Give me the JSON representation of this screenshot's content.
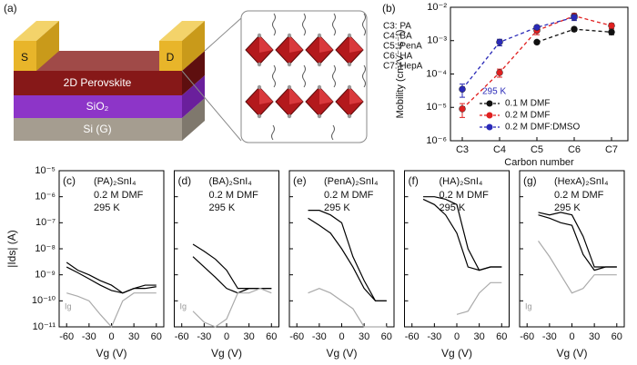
{
  "schematic": {
    "label": "(a)",
    "source": "S",
    "drain": "D",
    "layers": [
      "2D Perovskite",
      "SiO₂",
      "Si (G)"
    ]
  },
  "chart_data": [
    {
      "type": "line",
      "panel": "(b)",
      "xlabel": "Carbon number",
      "ylabel": "Mobility (cm²V⁻¹s⁻¹)",
      "log_y": true,
      "categories": [
        "C3",
        "C4",
        "C5",
        "C6",
        "C7"
      ],
      "ylim": [
        1e-06,
        0.01
      ],
      "yticks": [
        {
          "value": 1e-06,
          "label": "10⁻⁶"
        },
        {
          "value": 1e-05,
          "label": "10⁻⁵"
        },
        {
          "value": 0.0001,
          "label": "10⁻⁴"
        },
        {
          "value": 0.001,
          "label": "10⁻³"
        },
        {
          "value": 0.01,
          "label": "10⁻²"
        }
      ],
      "annotations": [
        "C3: PA",
        "C4: BA",
        "C5: PenA",
        "C6: HA",
        "C7: HepA"
      ],
      "legend_title": "295 K",
      "line_style": "dashed",
      "series": [
        {
          "name": "0.1 M DMF",
          "color": "#111111",
          "values": [
            null,
            null,
            0.0009,
            0.0022,
            0.0018
          ],
          "errors": [
            null,
            null,
            0.0001,
            0.0003,
            0.0003
          ]
        },
        {
          "name": "0.2 M DMF",
          "color": "#e02020",
          "values": [
            9e-06,
            0.00011,
            0.002,
            0.0055,
            0.0028
          ],
          "errors": [
            4e-06,
            3e-05,
            0.0005,
            0.001,
            0.0005
          ]
        },
        {
          "name": "0.2 M DMF:DMSO",
          "color": "#2a2ab8",
          "values": [
            3.5e-05,
            0.0009,
            0.0025,
            0.005,
            null
          ],
          "errors": [
            1.5e-05,
            0.0002,
            0.0003,
            0.001,
            null
          ]
        }
      ]
    },
    {
      "type": "line",
      "panel": "(c)",
      "title": "(PA)₂SnI₄",
      "notes": [
        "0.2 M  DMF",
        "295 K"
      ],
      "xlabel": "Vg (V)",
      "ylabel": "|Ids| (A)",
      "log_y": true,
      "gate_label": "Ig",
      "xlim": [
        -70,
        70
      ],
      "xticks": [
        -60,
        -30,
        0,
        30,
        60
      ],
      "ylim": [
        1e-11,
        1e-05
      ],
      "yticks": [
        {
          "value": 1e-11,
          "label": "10⁻¹¹"
        },
        {
          "value": 1e-10,
          "label": "10⁻¹⁰"
        },
        {
          "value": 1e-09,
          "label": "10⁻⁹"
        },
        {
          "value": 1e-08,
          "label": "10⁻⁸"
        },
        {
          "value": 1e-07,
          "label": "10⁻⁷"
        },
        {
          "value": 1e-06,
          "label": "10⁻⁶"
        },
        {
          "value": 1e-05,
          "label": "10⁻⁵"
        }
      ],
      "x": [
        -60,
        -45,
        -30,
        -15,
        0,
        15,
        30,
        45,
        60
      ],
      "series": [
        {
          "color": "#000000",
          "values": [
            3e-09,
            1.5e-09,
            1e-09,
            6e-10,
            4e-10,
            2e-10,
            3e-10,
            4e-10,
            4e-10
          ]
        },
        {
          "color": "#000000",
          "values": [
            2e-09,
            1.2e-09,
            7e-10,
            4e-10,
            2.5e-10,
            2e-10,
            3e-10,
            3e-10,
            3.5e-10
          ]
        },
        {
          "color": "#aaaaaa",
          "values": [
            2e-10,
            1.5e-10,
            1e-10,
            3e-11,
            1e-11,
            1e-10,
            2e-10,
            2e-10,
            2e-10
          ]
        }
      ]
    },
    {
      "type": "line",
      "panel": "(d)",
      "title": "(BA)₂SnI₄",
      "notes": [
        "0.2 M  DMF",
        "295 K"
      ],
      "xlabel": "Vg (V)",
      "log_y": true,
      "gate_label": "Ig",
      "xlim": [
        -70,
        70
      ],
      "xticks": [
        -60,
        -30,
        0,
        30,
        60
      ],
      "ylim": [
        1e-11,
        1e-05
      ],
      "yticks": [
        1e-11,
        1e-10,
        1e-09,
        1e-08,
        1e-07,
        1e-06,
        1e-05
      ],
      "x": [
        -60,
        -45,
        -30,
        -15,
        0,
        15,
        30,
        45,
        60
      ],
      "series": [
        {
          "color": "#000000",
          "values": [
            null,
            1.5e-08,
            8e-09,
            4e-09,
            1.5e-09,
            3e-10,
            3e-10,
            3e-10,
            3e-10
          ]
        },
        {
          "color": "#000000",
          "values": [
            null,
            5e-09,
            2e-09,
            8e-10,
            3e-10,
            2e-10,
            3e-10,
            3e-10,
            3e-10
          ]
        },
        {
          "color": "#aaaaaa",
          "values": [
            null,
            4e-11,
            1.5e-11,
            1e-11,
            2e-11,
            2e-10,
            2e-10,
            3e-10,
            2e-10
          ]
        }
      ]
    },
    {
      "type": "line",
      "panel": "(e)",
      "title": "(PenA)₂SnI₄",
      "notes": [
        "0.2 M  DMF",
        "295 K"
      ],
      "xlabel": "Vg (V)",
      "log_y": true,
      "xlim": [
        -70,
        70
      ],
      "xticks": [
        -60,
        -30,
        0,
        30,
        60
      ],
      "ylim": [
        1e-11,
        1e-05
      ],
      "yticks": [
        1e-11,
        1e-10,
        1e-09,
        1e-08,
        1e-07,
        1e-06,
        1e-05
      ],
      "x": [
        -60,
        -45,
        -30,
        -15,
        0,
        15,
        30,
        45,
        60
      ],
      "series": [
        {
          "color": "#000000",
          "values": [
            null,
            3e-07,
            3e-07,
            2e-07,
            1e-07,
            5e-09,
            6e-10,
            1e-10,
            1e-10
          ]
        },
        {
          "color": "#000000",
          "values": [
            null,
            1.5e-07,
            8e-08,
            4e-08,
            1e-08,
            2e-09,
            3e-10,
            1e-10,
            1e-10
          ]
        },
        {
          "color": "#aaaaaa",
          "values": [
            null,
            2e-10,
            3e-10,
            2e-10,
            1e-10,
            5e-11,
            1e-11,
            1e-11,
            1e-11
          ]
        }
      ]
    },
    {
      "type": "line",
      "panel": "(f)",
      "title": "(HA)₂SnI₄",
      "notes": [
        "0.2 M  DMF",
        "295 K"
      ],
      "xlabel": "Vg (V)",
      "log_y": true,
      "xlim": [
        -70,
        70
      ],
      "xticks": [
        -60,
        -30,
        0,
        30,
        60
      ],
      "ylim": [
        1e-11,
        1e-05
      ],
      "yticks": [
        1e-11,
        1e-10,
        1e-09,
        1e-08,
        1e-07,
        1e-06,
        1e-05
      ],
      "x": [
        -60,
        -45,
        -30,
        -15,
        0,
        15,
        30,
        45,
        60
      ],
      "series": [
        {
          "color": "#000000",
          "values": [
            null,
            1e-06,
            1e-06,
            8e-07,
            5e-07,
            1e-08,
            1.5e-09,
            2e-09,
            2e-09
          ]
        },
        {
          "color": "#000000",
          "values": [
            null,
            8e-07,
            5e-07,
            2e-07,
            4e-08,
            2e-09,
            1.5e-09,
            2e-09,
            2e-09
          ]
        },
        {
          "color": "#aaaaaa",
          "values": [
            null,
            null,
            null,
            null,
            3e-11,
            4e-11,
            2e-10,
            5e-10,
            5e-10
          ]
        }
      ]
    },
    {
      "type": "line",
      "panel": "(g)",
      "title": "(HexA)₂SnI₄",
      "notes": [
        "0.2 M  DMF",
        "295 K"
      ],
      "xlabel": "Vg (V)",
      "log_y": true,
      "gate_label": "Ig",
      "xlim": [
        -70,
        70
      ],
      "xticks": [
        -60,
        -30,
        0,
        30,
        60
      ],
      "ylim": [
        1e-11,
        1e-05
      ],
      "yticks": [
        1e-11,
        1e-10,
        1e-09,
        1e-08,
        1e-07,
        1e-06,
        1e-05
      ],
      "x": [
        -60,
        -45,
        -30,
        -15,
        0,
        15,
        30,
        45,
        60
      ],
      "series": [
        {
          "color": "#000000",
          "values": [
            null,
            2.5e-07,
            2e-07,
            2.5e-07,
            2e-07,
            3e-08,
            2e-09,
            2e-09,
            2e-09
          ]
        },
        {
          "color": "#000000",
          "values": [
            null,
            2e-07,
            1.5e-07,
            1e-07,
            8e-08,
            6e-09,
            1.5e-09,
            2e-09,
            2e-09
          ]
        },
        {
          "color": "#aaaaaa",
          "values": [
            null,
            2e-08,
            5e-09,
            1e-09,
            2e-10,
            3e-10,
            1e-09,
            1e-09,
            1e-09
          ]
        }
      ]
    }
  ]
}
